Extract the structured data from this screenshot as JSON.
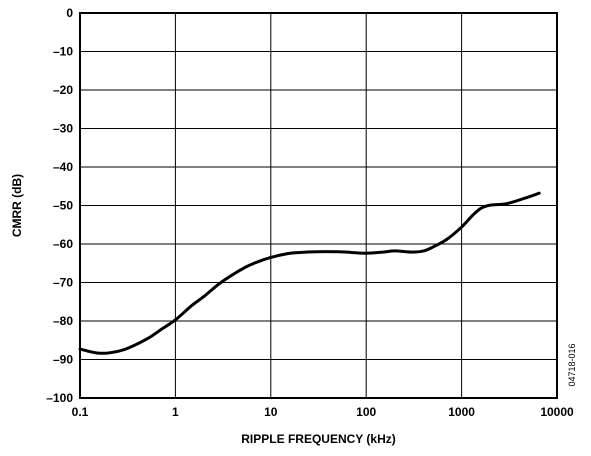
{
  "chart_data": {
    "type": "line",
    "title": "",
    "xlabel": "RIPPLE FREQUENCY (kHz)",
    "ylabel": "CMRR (dB)",
    "x_scale": "log",
    "xlim": [
      0.1,
      10000
    ],
    "ylim": [
      -100,
      0
    ],
    "x_ticks": [
      0.1,
      1,
      10,
      100,
      1000,
      10000
    ],
    "x_tick_labels": [
      "0.1",
      "1",
      "10",
      "100",
      "1000",
      "10000"
    ],
    "y_ticks": [
      0,
      -10,
      -20,
      -30,
      -40,
      -50,
      -60,
      -70,
      -80,
      -90,
      -100
    ],
    "y_tick_labels": [
      "0",
      "–10",
      "–20",
      "–30",
      "–40",
      "–50",
      "–60",
      "–70",
      "–80",
      "–90",
      "–100"
    ],
    "grid": true,
    "figure_id": "04718-016",
    "series": [
      {
        "x": [
          0.1,
          0.12,
          0.15,
          0.2,
          0.3,
          0.5,
          0.7,
          1,
          1.5,
          2,
          3,
          5,
          7,
          10,
          15,
          20,
          30,
          50,
          70,
          100,
          150,
          200,
          300,
          400,
          500,
          700,
          1000,
          1300,
          1600,
          2000,
          3000,
          5000,
          6500
        ],
        "y": [
          -87.3,
          -87.8,
          -88.3,
          -88.3,
          -87.3,
          -84.7,
          -82.3,
          -79.7,
          -75.9,
          -73.6,
          -70.0,
          -66.5,
          -64.8,
          -63.5,
          -62.5,
          -62.2,
          -62.0,
          -62.0,
          -62.2,
          -62.4,
          -62.1,
          -61.8,
          -62.1,
          -61.8,
          -60.8,
          -58.8,
          -55.6,
          -52.6,
          -50.7,
          -49.9,
          -49.5,
          -47.8,
          -46.8
        ]
      }
    ]
  }
}
